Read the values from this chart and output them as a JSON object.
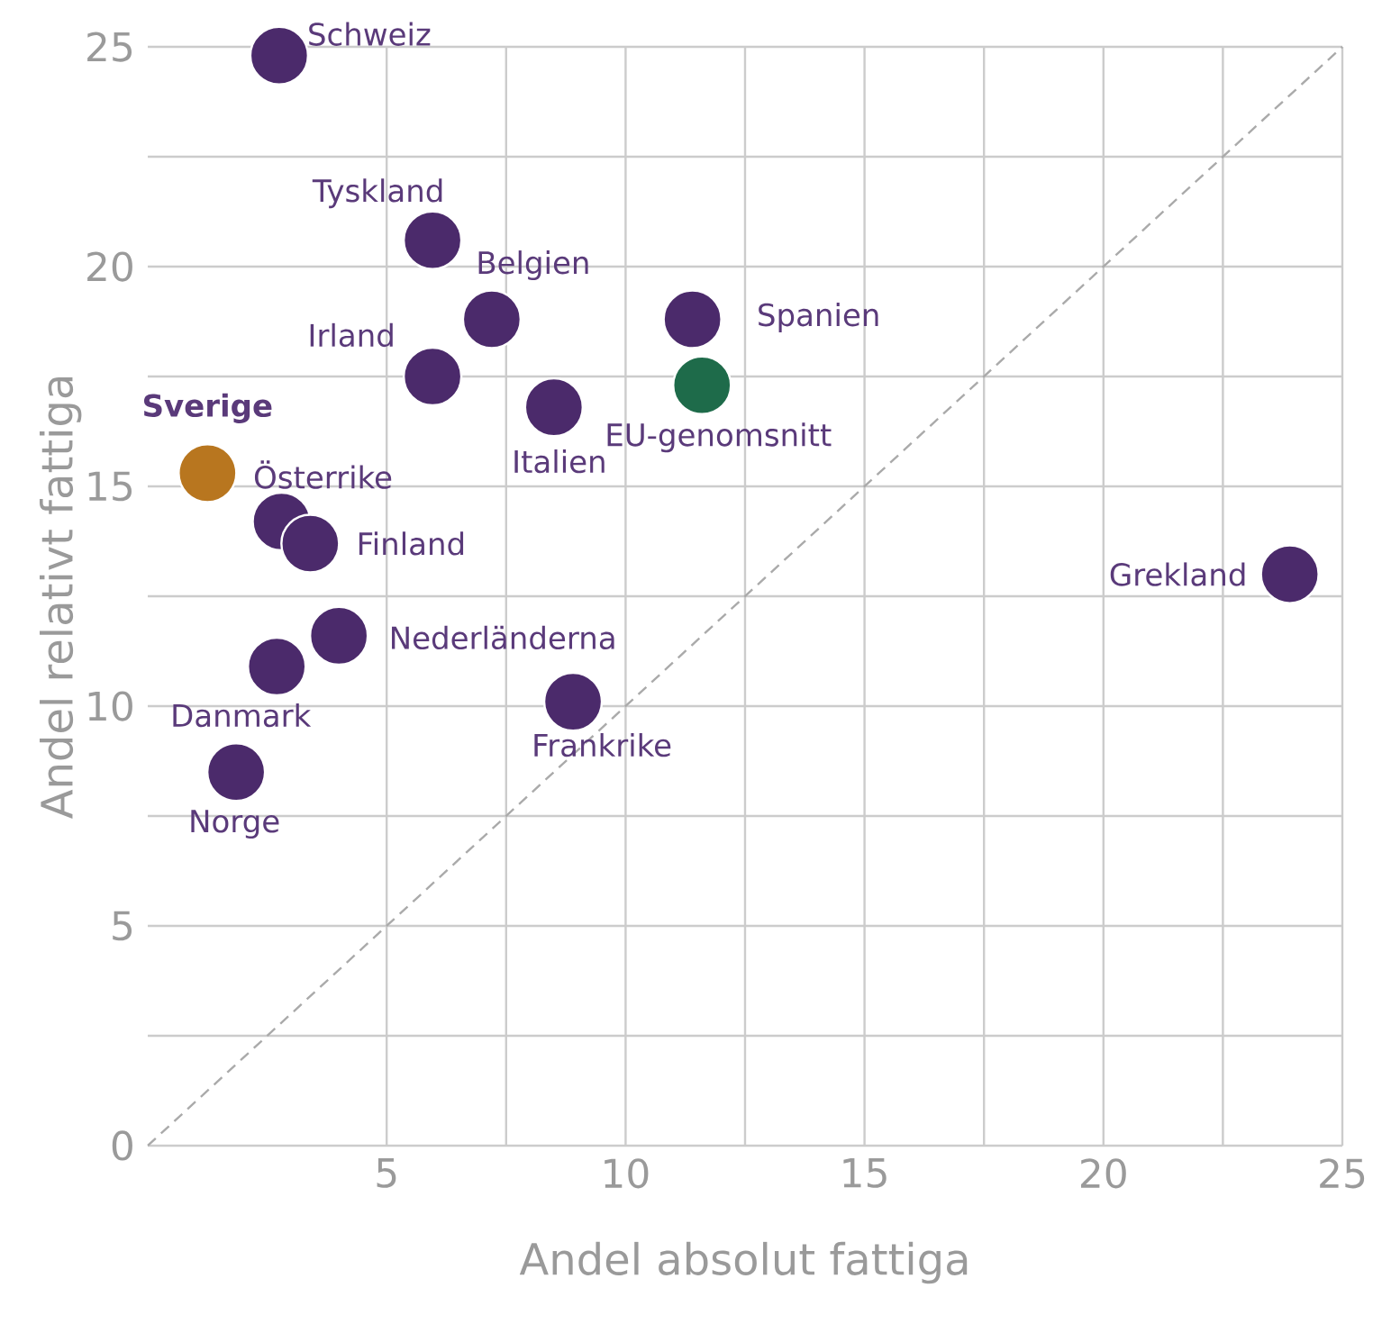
{
  "chart_data": {
    "type": "scatter",
    "xlabel": "Andel absolut fattiga",
    "ylabel": "Andel relativt fattiga",
    "xlim": [
      0,
      25
    ],
    "ylim": [
      0,
      25
    ],
    "xticks": [
      5,
      10,
      15,
      20,
      25
    ],
    "yticks": [
      0,
      5,
      10,
      15,
      20,
      25
    ],
    "grid": true,
    "series": [
      {
        "marker": "circle",
        "color": "#4b2a6b",
        "x": [
          2.75,
          5.96,
          7.2,
          5.96,
          8.5,
          11.4,
          2.8,
          3.4,
          4.0,
          2.7,
          1.85,
          8.9,
          23.9
        ],
        "values": [
          24.8,
          20.6,
          18.8,
          17.5,
          16.8,
          18.8,
          14.2,
          13.7,
          11.6,
          10.9,
          8.5,
          10.1,
          13.0
        ]
      },
      {
        "marker": "circle",
        "name": "Sverige",
        "color": "#b8761f",
        "x": [
          1.25
        ],
        "values": [
          15.3
        ]
      },
      {
        "marker": "circle",
        "name": "EU-genomsnitt",
        "color": "#1e6b4a",
        "x": [
          11.6
        ],
        "values": [
          17.3
        ]
      },
      {
        "type": "line",
        "color": "#aaaaaa",
        "line_style": "dashed",
        "marker": "none",
        "x": [
          0,
          25
        ],
        "values": [
          0,
          25
        ]
      }
    ],
    "annotations": [
      {
        "text": "Schweiz",
        "x": 2.75,
        "y": 24.8
      },
      {
        "text": "Tyskland",
        "x": 5.96,
        "y": 20.6
      },
      {
        "text": "Belgien",
        "x": 7.2,
        "y": 18.8
      },
      {
        "text": "Irland",
        "x": 5.96,
        "y": 17.5
      },
      {
        "text": "Italien",
        "x": 8.5,
        "y": 16.8
      },
      {
        "text": "Spanien",
        "x": 11.4,
        "y": 18.8
      },
      {
        "text": "Österrike",
        "x": 2.8,
        "y": 14.2
      },
      {
        "text": "Finland",
        "x": 3.4,
        "y": 13.7
      },
      {
        "text": "Nederländerna",
        "x": 4.0,
        "y": 11.6
      },
      {
        "text": "Danmark",
        "x": 2.7,
        "y": 10.9
      },
      {
        "text": "Norge",
        "x": 1.85,
        "y": 8.5
      },
      {
        "text": "Frankrike",
        "x": 8.9,
        "y": 10.1
      },
      {
        "text": "Grekland",
        "x": 23.9,
        "y": 13.0
      }
    ]
  }
}
